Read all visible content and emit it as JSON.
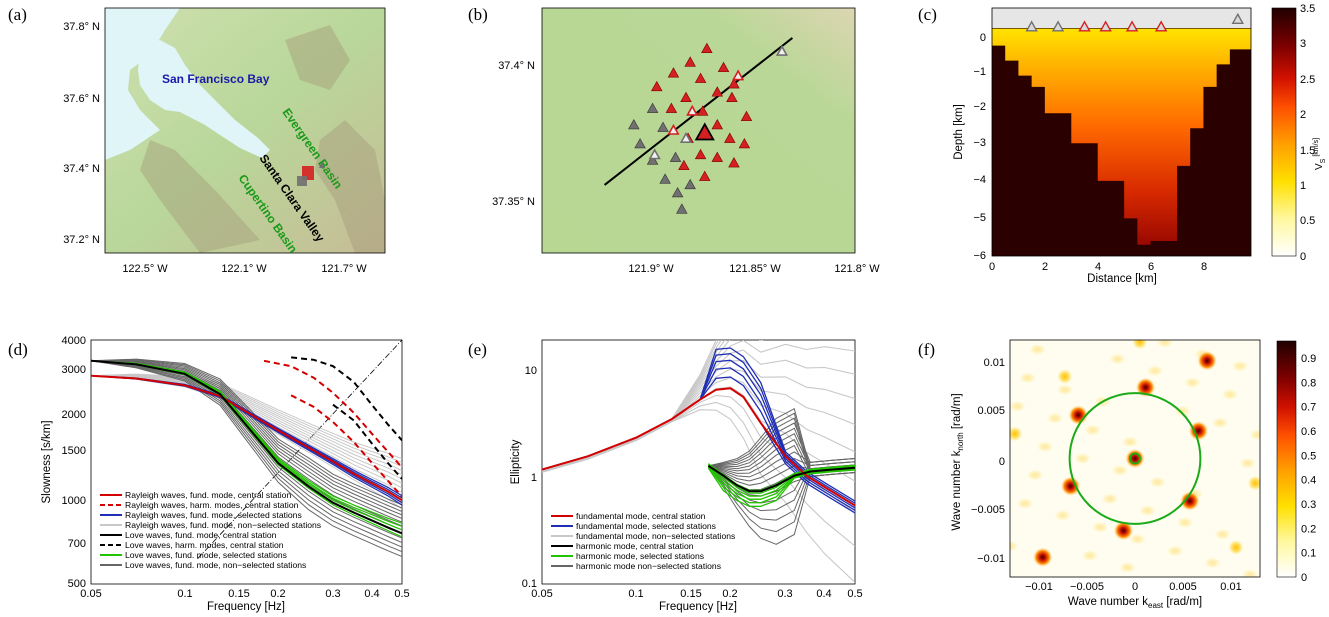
{
  "panels": {
    "a": {
      "label": "(a)",
      "lat_ticks": [
        "37.8° N",
        "37.6° N",
        "37.4° N",
        "37.2° N"
      ],
      "lon_ticks": [
        "122.5° W",
        "122.1° W",
        "121.7° W"
      ],
      "places": [
        "San Francisco Bay",
        "Evergreen Basin",
        "Santa Clara Valley",
        "Cupertino Basin"
      ]
    },
    "b": {
      "label": "(b)",
      "lat_ticks": [
        "37.4° N",
        "37.35° N"
      ],
      "lon_ticks": [
        "121.9° W",
        "121.85° W",
        "121.8° W"
      ]
    },
    "c": {
      "label": "(c)",
      "xlabel": "Distance [km]",
      "ylabel": "Depth [km]",
      "cbar_label": "V",
      "cbar_sub": "S",
      "cbar_unit": "[km/s]",
      "xticks": [
        "0",
        "2",
        "4",
        "6",
        "8"
      ],
      "yticks": [
        "0",
        "−1",
        "−2",
        "−3",
        "−4",
        "−5",
        "−6"
      ],
      "cbar_ticks": [
        "3.5",
        "3",
        "2.5",
        "2",
        "1.5",
        "1",
        "0.5",
        "0"
      ]
    },
    "d": {
      "label": "(d)",
      "xlabel": "Frequency [Hz]",
      "ylabel": "Slowness [s/km]",
      "xticks": [
        "0.05",
        "0.1",
        "0.15",
        "0.2",
        "0.3",
        "0.4",
        "0.5"
      ],
      "yticks": [
        "4000",
        "3000",
        "2000",
        "1500",
        "1000",
        "700",
        "500"
      ],
      "legend": [
        "Rayleigh waves, fund. mode, central station",
        "Rayleigh waves, harm. modes, central station",
        "Rayleigh waves, fund. mode, selected stations",
        "Rayleigh waves, fund. mode, non−selected stations",
        "Love waves, fund. mode, central station",
        "Love waves, harm. modes, central station",
        "Love waves, fund. mode, selected stations",
        "Love waves, fund. mode, non−selected stations"
      ]
    },
    "e": {
      "label": "(e)",
      "xlabel": "Frequency [Hz]",
      "ylabel": "Ellipticity",
      "xticks": [
        "0.05",
        "0.1",
        "0.15",
        "0.2",
        "0.3",
        "0.4",
        "0.5"
      ],
      "yticks": [
        "10",
        "1",
        "0.1"
      ],
      "legend": [
        "fundamental mode, central station",
        "fundamental mode, selected stations",
        "fundamental mode, non−selected stations",
        "harmonic mode, central station",
        "harmonic mode, selected stations",
        "harmonic mode non−selected stations"
      ]
    },
    "f": {
      "label": "(f)",
      "xlabel": "Wave number k",
      "xlabel_sub": "east",
      "xlabel_unit": " [rad/m]",
      "ylabel": "Wave number k",
      "ylabel_sub": "north",
      "ylabel_unit": " [rad/m]",
      "xticks": [
        "−0.01",
        "−0.005",
        "0",
        "0.005",
        "0.01"
      ],
      "yticks": [
        "0.01",
        "0.005",
        "0",
        "−0.005",
        "−0.01"
      ],
      "cbar_ticks": [
        "0.9",
        "0.8",
        "0.7",
        "0.6",
        "0.5",
        "0.4",
        "0.3",
        "0.2",
        "0.1",
        "0"
      ]
    }
  },
  "colors": {
    "rayleigh_central": "#d40000",
    "selected_blue": "#1f2fb4",
    "nonselected_light": "#c8c8c8",
    "love_central": "#000000",
    "selected_green": "#22c400",
    "nonselected_dark": "#666666",
    "station_red": "#d42020",
    "station_gray": "#707070"
  },
  "chart_data": [
    {
      "type": "scatter",
      "panel": "b",
      "title": "",
      "xlim": [
        -121.94,
        -121.79
      ],
      "ylim": [
        37.33,
        37.42
      ],
      "profile_line": {
        "x": [
          -121.91,
          -121.82
        ],
        "y": [
          37.355,
          37.409
        ]
      },
      "central_station": {
        "x": -121.862,
        "y": 37.374
      },
      "stations_red": [
        {
          "x": -121.861,
          "y": 37.405
        },
        {
          "x": -121.869,
          "y": 37.4
        },
        {
          "x": -121.853,
          "y": 37.398
        },
        {
          "x": -121.877,
          "y": 37.396
        },
        {
          "x": -121.885,
          "y": 37.391
        },
        {
          "x": -121.864,
          "y": 37.394
        },
        {
          "x": -121.871,
          "y": 37.387
        },
        {
          "x": -121.856,
          "y": 37.389
        },
        {
          "x": -121.848,
          "y": 37.392
        },
        {
          "x": -121.878,
          "y": 37.383
        },
        {
          "x": -121.863,
          "y": 37.382
        },
        {
          "x": -121.849,
          "y": 37.387
        },
        {
          "x": -121.856,
          "y": 37.377
        },
        {
          "x": -121.842,
          "y": 37.38
        },
        {
          "x": -121.87,
          "y": 37.372
        },
        {
          "x": -121.85,
          "y": 37.372
        },
        {
          "x": -121.864,
          "y": 37.366
        },
        {
          "x": -121.843,
          "y": 37.37
        },
        {
          "x": -121.856,
          "y": 37.365
        },
        {
          "x": -121.872,
          "y": 37.362
        },
        {
          "x": -121.848,
          "y": 37.363
        },
        {
          "x": -121.862,
          "y": 37.358
        }
      ],
      "stations_red_open": [
        {
          "x": -121.846,
          "y": 37.395
        },
        {
          "x": -121.868,
          "y": 37.382
        },
        {
          "x": -121.877,
          "y": 37.375
        }
      ],
      "stations_gray": [
        {
          "x": -121.896,
          "y": 37.377
        },
        {
          "x": -121.887,
          "y": 37.383
        },
        {
          "x": -121.882,
          "y": 37.376
        },
        {
          "x": -121.893,
          "y": 37.37
        },
        {
          "x": -121.876,
          "y": 37.365
        },
        {
          "x": -121.881,
          "y": 37.357
        },
        {
          "x": -121.887,
          "y": 37.364
        },
        {
          "x": -121.875,
          "y": 37.352
        },
        {
          "x": -121.869,
          "y": 37.355
        },
        {
          "x": -121.873,
          "y": 37.346
        }
      ],
      "stations_gray_open": [
        {
          "x": -121.871,
          "y": 37.372
        },
        {
          "x": -121.886,
          "y": 37.366
        },
        {
          "x": -121.825,
          "y": 37.404
        }
      ]
    },
    {
      "type": "heatmap",
      "panel": "c",
      "xlim": [
        0,
        9.8
      ],
      "ylim": [
        -6,
        0.6
      ],
      "vs_range": [
        0,
        3.5
      ],
      "basin_bottom": {
        "x": [
          0,
          0.5,
          1,
          1.5,
          2,
          3,
          4,
          5,
          5.5,
          6,
          7,
          7.5,
          8,
          8.5,
          9,
          9.8
        ],
        "y": [
          -0.4,
          -0.8,
          -1.2,
          -1.5,
          -2.2,
          -3.0,
          -4.0,
          -5.0,
          -5.7,
          -5.6,
          -3.6,
          -2.6,
          -1.5,
          -0.9,
          -0.5,
          -0.3
        ]
      },
      "stations_gray_x": [
        1.5,
        2.5,
        9.3
      ],
      "stations_red_x": [
        3.5,
        4.3,
        5.3,
        6.4
      ],
      "stations_y": [
        0.1,
        0.1,
        0.3,
        0.1,
        0.1,
        0.1,
        0.1
      ]
    },
    {
      "type": "line",
      "panel": "d",
      "xscale": "log",
      "yscale": "log",
      "xlim": [
        0.05,
        0.5
      ],
      "ylim": [
        500,
        4000
      ],
      "x": [
        0.05,
        0.07,
        0.1,
        0.13,
        0.16,
        0.2,
        0.25,
        0.3,
        0.35,
        0.4,
        0.45,
        0.5
      ],
      "series": [
        {
          "name": "Rayleigh waves, fund. mode, central station",
          "values": [
            2950,
            2880,
            2720,
            2480,
            2150,
            1850,
            1600,
            1420,
            1280,
            1180,
            1100,
            1020
          ]
        },
        {
          "name": "Love waves, fund. mode, central station",
          "values": [
            3350,
            3250,
            3000,
            2520,
            1900,
            1400,
            1150,
            1000,
            920,
            860,
            810,
            770
          ]
        },
        {
          "name": "Rayleigh waves, harm. modes, central station",
          "x": [
            0.18,
            0.22,
            0.26,
            0.3,
            0.35,
            0.4,
            0.5
          ],
          "values": [
            3350,
            3200,
            2900,
            2550,
            2150,
            1800,
            1350
          ]
        },
        {
          "name": "Love waves, harm. modes, central station",
          "x": [
            0.22,
            0.26,
            0.3,
            0.35,
            0.4,
            0.45,
            0.5
          ],
          "values": [
            3450,
            3380,
            3200,
            2800,
            2300,
            1950,
            1700
          ]
        }
      ],
      "reference_line": {
        "x": [
          0.11,
          0.5
        ],
        "y": [
          620,
          4000
        ]
      }
    },
    {
      "type": "line",
      "panel": "e",
      "xscale": "log",
      "yscale": "log",
      "xlim": [
        0.05,
        0.5
      ],
      "ylim": [
        0.1,
        20
      ],
      "x": [
        0.05,
        0.07,
        0.1,
        0.13,
        0.16,
        0.18,
        0.2,
        0.22,
        0.25,
        0.3,
        0.35,
        0.4,
        0.5
      ],
      "series": [
        {
          "name": "fundamental mode, central station",
          "values": [
            1.2,
            1.6,
            2.4,
            3.6,
            5.5,
            6.8,
            7.0,
            5.8,
            3.3,
            1.6,
            1.05,
            0.82,
            0.55
          ]
        },
        {
          "name": "harmonic mode, central station",
          "x": [
            0.17,
            0.19,
            0.21,
            0.23,
            0.25,
            0.28,
            0.32,
            0.36,
            0.42,
            0.5
          ],
          "values": [
            1.3,
            1.05,
            0.85,
            0.75,
            0.75,
            0.85,
            1.05,
            1.15,
            1.2,
            1.25
          ]
        }
      ]
    },
    {
      "type": "heatmap",
      "panel": "f",
      "xlim": [
        -0.013,
        0.013
      ],
      "ylim": [
        -0.012,
        0.012
      ],
      "value_range": [
        0,
        0.97
      ],
      "circle_radius": 0.0068,
      "peaks": [
        {
          "x": 0,
          "y": 0,
          "v": 0.97
        },
        {
          "x": 0.0011,
          "y": 0.0072,
          "v": 0.8
        },
        {
          "x": 0.0075,
          "y": 0.0099,
          "v": 0.75
        },
        {
          "x": -0.0073,
          "y": 0.0083,
          "v": 0.35
        },
        {
          "x": -0.0059,
          "y": 0.0044,
          "v": 0.75
        },
        {
          "x": 0.0066,
          "y": 0.0028,
          "v": 0.8
        },
        {
          "x": -0.0067,
          "y": -0.0028,
          "v": 0.85
        },
        {
          "x": -0.0012,
          "y": -0.0073,
          "v": 0.8
        },
        {
          "x": 0.0057,
          "y": -0.0043,
          "v": 0.75
        },
        {
          "x": -0.0096,
          "y": -0.01,
          "v": 0.75
        },
        {
          "x": 0.0105,
          "y": -0.009,
          "v": 0.3
        },
        {
          "x": -0.0125,
          "y": 0.0025,
          "v": 0.3
        },
        {
          "x": 0.0125,
          "y": -0.0025,
          "v": 0.25
        },
        {
          "x": 0.0005,
          "y": 0.0118,
          "v": 0.3
        }
      ]
    }
  ]
}
